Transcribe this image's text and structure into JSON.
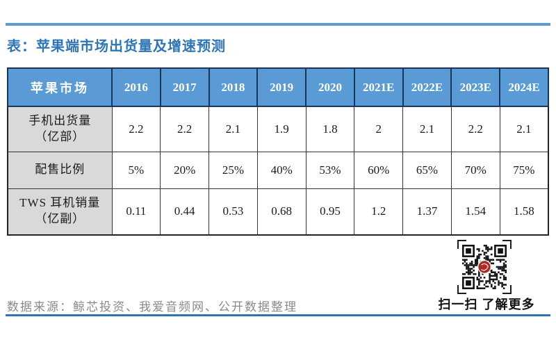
{
  "page": {
    "title": "表：苹果端市场出货量及增速预测",
    "source": "数据来源：鲸芯投资、我爱音频网、公开数据整理",
    "qr_caption": "扫一扫 了解更多"
  },
  "table": {
    "header": [
      "苹果市场",
      "2016",
      "2017",
      "2018",
      "2019",
      "2020",
      "2021E",
      "2022E",
      "2023E",
      "2024E"
    ],
    "rows": [
      {
        "label": "手机出货量",
        "label2": "（亿部）",
        "values": [
          "2.2",
          "2.2",
          "2.1",
          "1.9",
          "1.8",
          "2",
          "2.1",
          "2.2",
          "2.1"
        ]
      },
      {
        "label": "配售比例",
        "label2": "",
        "values": [
          "5%",
          "20%",
          "25%",
          "40%",
          "53%",
          "60%",
          "65%",
          "70%",
          "75%"
        ]
      },
      {
        "label": "TWS 耳机销量",
        "label2": "（亿副）",
        "values": [
          "0.11",
          "0.44",
          "0.53",
          "0.68",
          "0.95",
          "1.2",
          "1.37",
          "1.54",
          "1.58"
        ]
      }
    ]
  },
  "chart_data": {
    "type": "table",
    "title": "表：苹果端市场出货量及增速预测",
    "categories": [
      "2016",
      "2017",
      "2018",
      "2019",
      "2020",
      "2021E",
      "2022E",
      "2023E",
      "2024E"
    ],
    "series": [
      {
        "name": "手机出货量（亿部）",
        "values": [
          2.2,
          2.2,
          2.1,
          1.9,
          1.8,
          2,
          2.1,
          2.2,
          2.1
        ]
      },
      {
        "name": "配售比例",
        "values": [
          "5%",
          "20%",
          "25%",
          "40%",
          "53%",
          "60%",
          "65%",
          "70%",
          "75%"
        ]
      },
      {
        "name": "TWS 耳机销量（亿副）",
        "values": [
          0.11,
          0.44,
          0.53,
          0.68,
          0.95,
          1.2,
          1.37,
          1.54,
          1.58
        ]
      }
    ],
    "source": "数据来源：鲸芯投资、我爱音频网、公开数据整理"
  },
  "colors": {
    "header_bg": "#5B9BD5",
    "header_border": "#17365D",
    "label_bg": "#D9D9D9",
    "title_text": "#2E75B6",
    "top_line": "#5B9BD5",
    "bottom_line": "#2E74B5",
    "source_text": "#8a8a8a",
    "qr_logo": "#B02A24"
  }
}
